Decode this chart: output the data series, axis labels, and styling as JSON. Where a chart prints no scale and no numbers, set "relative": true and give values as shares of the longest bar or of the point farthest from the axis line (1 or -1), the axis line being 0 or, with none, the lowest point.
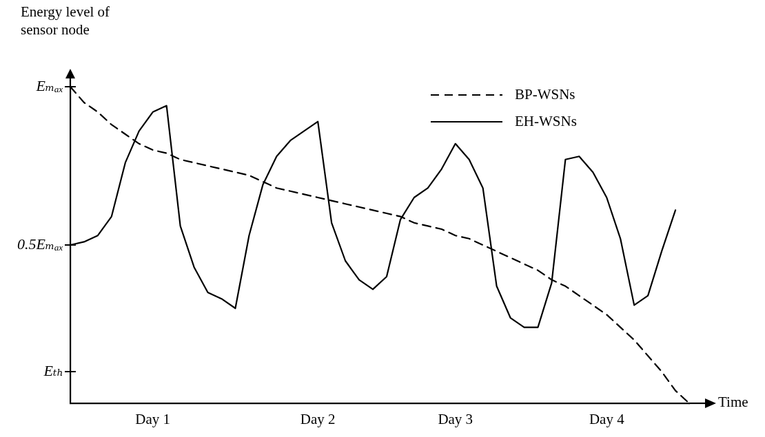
{
  "chart_data": {
    "type": "line",
    "xlabel": "Time",
    "ylabel": "Energy level of sensor node",
    "relative": true,
    "categories": [
      null,
      null,
      null,
      null,
      null,
      null,
      "Day 1",
      null,
      null,
      null,
      null,
      null,
      null,
      null,
      null,
      null,
      null,
      null,
      "Day 2",
      null,
      null,
      null,
      null,
      null,
      null,
      null,
      null,
      null,
      "Day 3",
      null,
      null,
      null,
      null,
      null,
      null,
      null,
      null,
      null,
      null,
      "Day 4",
      null,
      null,
      null,
      null,
      null,
      null
    ],
    "ref_lines": [
      {
        "axis": "y",
        "value": 0.1,
        "label": "Eₜₕ"
      },
      {
        "axis": "y",
        "value": 0.5,
        "label": "0.5Eₘₐₓ"
      },
      {
        "axis": "y",
        "value": 1,
        "label": "Eₘₐₓ"
      }
    ],
    "grid": false,
    "legend": "top right",
    "marker": "none",
    "series": [
      {
        "name": "BP-WSNs",
        "color": "#000000",
        "line_style": "dashed",
        "values": [
          1.0,
          0.95,
          0.92,
          0.88,
          0.85,
          0.82,
          0.8,
          0.79,
          0.77,
          0.76,
          0.75,
          0.74,
          0.73,
          0.72,
          0.7,
          0.68,
          0.67,
          0.66,
          0.65,
          0.64,
          0.63,
          0.62,
          0.61,
          0.6,
          0.59,
          0.57,
          0.56,
          0.55,
          0.53,
          0.52,
          0.5,
          0.48,
          0.46,
          0.44,
          0.42,
          0.39,
          0.37,
          0.34,
          0.31,
          0.28,
          0.24,
          0.2,
          0.15,
          0.1,
          0.04,
          0.0
        ]
      },
      {
        "name": "EH-WSNs",
        "color": "#000000",
        "line_style": "solid",
        "values": [
          0.5,
          0.51,
          0.53,
          0.59,
          0.76,
          0.86,
          0.92,
          0.94,
          0.56,
          0.43,
          0.35,
          0.33,
          0.3,
          0.53,
          0.69,
          0.78,
          0.83,
          0.86,
          0.89,
          0.57,
          0.45,
          0.39,
          0.36,
          0.4,
          0.58,
          0.65,
          0.68,
          0.74,
          0.82,
          0.77,
          0.68,
          0.37,
          0.27,
          0.24,
          0.24,
          0.38,
          0.77,
          0.78,
          0.73,
          0.65,
          0.52,
          0.31,
          0.34,
          0.48,
          0.61,
          null
        ]
      }
    ]
  }
}
